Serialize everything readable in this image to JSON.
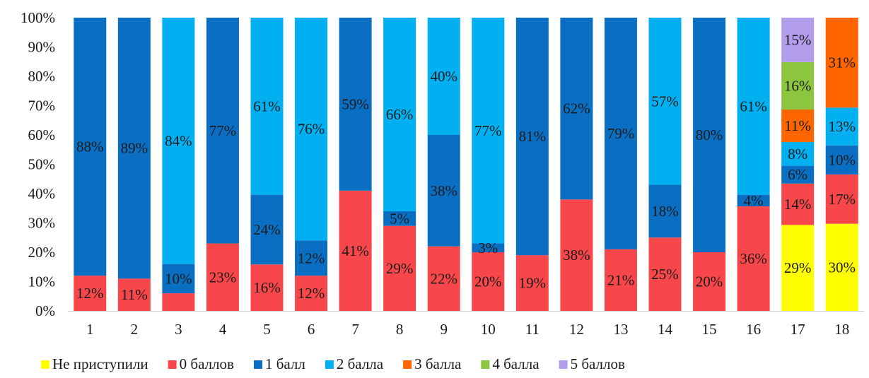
{
  "chart_data": {
    "type": "bar",
    "stacked": true,
    "normalized": true,
    "categories": [
      "1",
      "2",
      "3",
      "4",
      "5",
      "6",
      "7",
      "8",
      "9",
      "10",
      "11",
      "12",
      "13",
      "14",
      "15",
      "16",
      "17",
      "18"
    ],
    "ylim": [
      0,
      100
    ],
    "yticks": [
      "0%",
      "10%",
      "20%",
      "30%",
      "40%",
      "50%",
      "60%",
      "70%",
      "80%",
      "90%",
      "100%"
    ],
    "grid": false,
    "legend_position": "bottom",
    "series": [
      {
        "name": "Не приступили",
        "color": "#ffff00",
        "values": [
          0,
          0,
          0,
          0,
          0,
          0,
          0,
          0,
          0,
          0,
          0,
          0,
          0,
          0,
          0,
          0,
          29,
          30
        ],
        "labels": [
          "",
          "",
          "",
          "",
          "",
          "",
          "",
          "",
          "",
          "",
          "",
          "",
          "",
          "",
          "",
          "",
          "29%",
          "30%"
        ]
      },
      {
        "name": "0 баллов",
        "color": "#f8474a",
        "values": [
          12,
          11,
          6,
          23,
          16,
          12,
          41,
          29,
          22,
          20,
          19,
          38,
          21,
          25,
          20,
          36,
          14,
          17
        ],
        "labels": [
          "12%",
          "11%",
          "",
          "23%",
          "16%",
          "12%",
          "41%",
          "29%",
          "22%",
          "20%",
          "19%",
          "38%",
          "21%",
          "25%",
          "20%",
          "36%",
          "14%",
          "17%"
        ]
      },
      {
        "name": "1 балл",
        "color": "#0a6fc2",
        "values": [
          88,
          89,
          10,
          77,
          24,
          12,
          59,
          5,
          38,
          3,
          81,
          62,
          79,
          18,
          80,
          4,
          6,
          10
        ],
        "labels": [
          "88%",
          "89%",
          "10%",
          "77%",
          "24%",
          "12%",
          "59%",
          "5%",
          "38%",
          "3%",
          "81%",
          "62%",
          "79%",
          "18%",
          "80%",
          "4%",
          "6%",
          "10%"
        ]
      },
      {
        "name": "2 балла",
        "color": "#00b0f0",
        "values": [
          0,
          0,
          84,
          0,
          61,
          76,
          0,
          66,
          40,
          77,
          0,
          0,
          0,
          57,
          0,
          61,
          8,
          13
        ],
        "labels": [
          "",
          "",
          "84%",
          "",
          "61%",
          "76%",
          "",
          "66%",
          "40%",
          "77%",
          "",
          "",
          "",
          "57%",
          "",
          "61%",
          "8%",
          "13%"
        ]
      },
      {
        "name": "3 балла",
        "color": "#ff6600",
        "values": [
          0,
          0,
          0,
          0,
          0,
          0,
          0,
          0,
          0,
          0,
          0,
          0,
          0,
          0,
          0,
          0,
          11,
          31
        ],
        "labels": [
          "",
          "",
          "",
          "",
          "",
          "",
          "",
          "",
          "",
          "",
          "",
          "",
          "",
          "",
          "",
          "",
          "11%",
          "31%"
        ]
      },
      {
        "name": "4 балла",
        "color": "#8cc63f",
        "values": [
          0,
          0,
          0,
          0,
          0,
          0,
          0,
          0,
          0,
          0,
          0,
          0,
          0,
          0,
          0,
          0,
          16,
          0
        ],
        "labels": [
          "",
          "",
          "",
          "",
          "",
          "",
          "",
          "",
          "",
          "",
          "",
          "",
          "",
          "",
          "",
          "",
          "16%",
          ""
        ]
      },
      {
        "name": "5 баллов",
        "color": "#b29ded",
        "values": [
          0,
          0,
          0,
          0,
          0,
          0,
          0,
          0,
          0,
          0,
          0,
          0,
          0,
          0,
          0,
          0,
          15,
          0
        ],
        "labels": [
          "",
          "",
          "",
          "",
          "",
          "",
          "",
          "",
          "",
          "",
          "",
          "",
          "",
          "",
          "",
          "",
          "15%",
          ""
        ]
      }
    ]
  }
}
